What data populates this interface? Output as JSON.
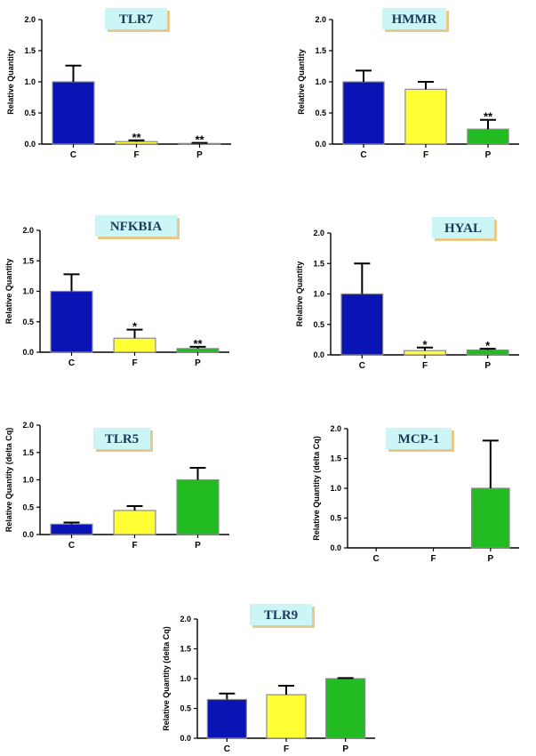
{
  "chart_data": [
    {
      "type": "bar",
      "title": "TLR7",
      "ylabel": "Relative Quantity",
      "categories": [
        "C",
        "F",
        "P"
      ],
      "values": [
        1.0,
        0.04,
        0.01
      ],
      "errors": [
        0.26,
        0.02,
        0.01
      ],
      "significance": [
        "",
        "**",
        "**"
      ],
      "ylim": [
        0,
        2.0
      ],
      "yticks": [
        "0.0",
        "0.5",
        "1.0",
        "1.5",
        "2.0"
      ],
      "colors": [
        "#0a14b4",
        "#ffff33",
        "#22bb22"
      ]
    },
    {
      "type": "bar",
      "title": "HMMR",
      "ylabel": "Relative Quantity",
      "categories": [
        "C",
        "F",
        "P"
      ],
      "values": [
        1.0,
        0.88,
        0.24
      ],
      "errors": [
        0.18,
        0.12,
        0.15
      ],
      "significance": [
        "",
        "",
        "**"
      ],
      "ylim": [
        0,
        2.0
      ],
      "yticks": [
        "0.0",
        "0.5",
        "1.0",
        "1.5",
        "2.0"
      ],
      "colors": [
        "#0a14b4",
        "#ffff33",
        "#22bb22"
      ]
    },
    {
      "type": "bar",
      "title": "NFKBIA",
      "ylabel": "Relative Quantity",
      "categories": [
        "C",
        "F",
        "P"
      ],
      "values": [
        1.0,
        0.23,
        0.06
      ],
      "errors": [
        0.28,
        0.14,
        0.03
      ],
      "significance": [
        "",
        "*",
        "**"
      ],
      "ylim": [
        0,
        2.0
      ],
      "yticks": [
        "0.0",
        "0.5",
        "1.0",
        "1.5",
        "2.0"
      ],
      "colors": [
        "#0a14b4",
        "#ffff33",
        "#22bb22"
      ]
    },
    {
      "type": "bar",
      "title": "HYAL",
      "ylabel": "Relative Quantity",
      "categories": [
        "C",
        "F",
        "P"
      ],
      "values": [
        1.0,
        0.07,
        0.08
      ],
      "errors": [
        0.5,
        0.05,
        0.02
      ],
      "significance": [
        "",
        "*",
        "*"
      ],
      "ylim": [
        0,
        2.0
      ],
      "yticks": [
        "0.0",
        "0.5",
        "1.0",
        "1.5",
        "2.0"
      ],
      "colors": [
        "#0a14b4",
        "#ffff33",
        "#22bb22"
      ]
    },
    {
      "type": "bar",
      "title": "TLR5",
      "ylabel": "Relative Quantity (delta Cq)",
      "categories": [
        "C",
        "F",
        "P"
      ],
      "values": [
        0.19,
        0.44,
        1.0
      ],
      "errors": [
        0.03,
        0.08,
        0.22
      ],
      "significance": [
        "",
        "",
        ""
      ],
      "ylim": [
        0,
        2.0
      ],
      "yticks": [
        "0.0",
        "0.5",
        "1.0",
        "1.5",
        "2.0"
      ],
      "colors": [
        "#0a14b4",
        "#ffff33",
        "#22bb22"
      ]
    },
    {
      "type": "bar",
      "title": "MCP-1",
      "ylabel": "Relative Quantity (delta Cq)",
      "categories": [
        "C",
        "F",
        "P"
      ],
      "values": [
        0.0,
        0.0,
        1.0
      ],
      "errors": [
        0.0,
        0.0,
        0.8
      ],
      "significance": [
        "",
        "",
        ""
      ],
      "ylim": [
        0,
        2.0
      ],
      "yticks": [
        "0.0",
        "0.5",
        "1.0",
        "1.5",
        "2.0"
      ],
      "colors": [
        "#0a14b4",
        "#ffff33",
        "#22bb22"
      ]
    },
    {
      "type": "bar",
      "title": "TLR9",
      "ylabel": "Relative Quantity (delta Cq)",
      "categories": [
        "C",
        "F",
        "P"
      ],
      "values": [
        0.65,
        0.73,
        1.0
      ],
      "errors": [
        0.1,
        0.15,
        0.01
      ],
      "significance": [
        "",
        "",
        ""
      ],
      "ylim": [
        0,
        2.0
      ],
      "yticks": [
        "0.0",
        "0.5",
        "1.0",
        "1.5",
        "2.0"
      ],
      "colors": [
        "#0a14b4",
        "#ffff33",
        "#22bb22"
      ]
    }
  ]
}
